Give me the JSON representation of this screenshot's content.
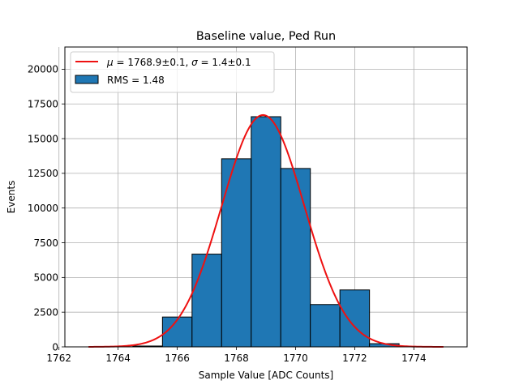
{
  "chart_data": {
    "type": "bar",
    "title": "Baseline value, Ped Run",
    "xlabel": "Sample Value [ADC Counts]",
    "ylabel": "Events",
    "xlim": [
      1762.2,
      1775.8
    ],
    "ylim": [
      0,
      21600
    ],
    "xticks": [
      1762,
      1764,
      1766,
      1768,
      1770,
      1772,
      1774
    ],
    "yticks": [
      0,
      2500,
      5000,
      7500,
      10000,
      12500,
      15000,
      17500,
      20000
    ],
    "ytick_labels": [
      "0",
      "2500",
      "5000",
      "7500",
      "10000",
      "12500",
      "15000",
      "17500",
      "20000"
    ],
    "grid": true,
    "legend_position": "top-left",
    "histogram": {
      "name": "RMS = 1.48",
      "color": "#1f77b4",
      "bin_edges": [
        1762.5,
        1763.5,
        1764.5,
        1765.5,
        1766.5,
        1767.5,
        1768.5,
        1769.5,
        1770.5,
        1771.5,
        1772.5,
        1773.5
      ],
      "counts": [
        0,
        10,
        60,
        2150,
        6680,
        13550,
        16580,
        12850,
        3050,
        4100,
        230
      ]
    },
    "fit": {
      "name": "μ = 1768.9±0.1, σ = 1.4±0.1",
      "label_parts": {
        "mu_symbol": "μ",
        "mu_value": " = 1768.9±0.1, ",
        "sigma_symbol": "σ",
        "sigma_value": " = 1.4±0.1"
      },
      "color": "#ee1111",
      "type": "gaussian",
      "amplitude": 16700,
      "mean": 1768.9,
      "sigma": 1.4,
      "x_range": [
        1763,
        1775
      ]
    }
  }
}
